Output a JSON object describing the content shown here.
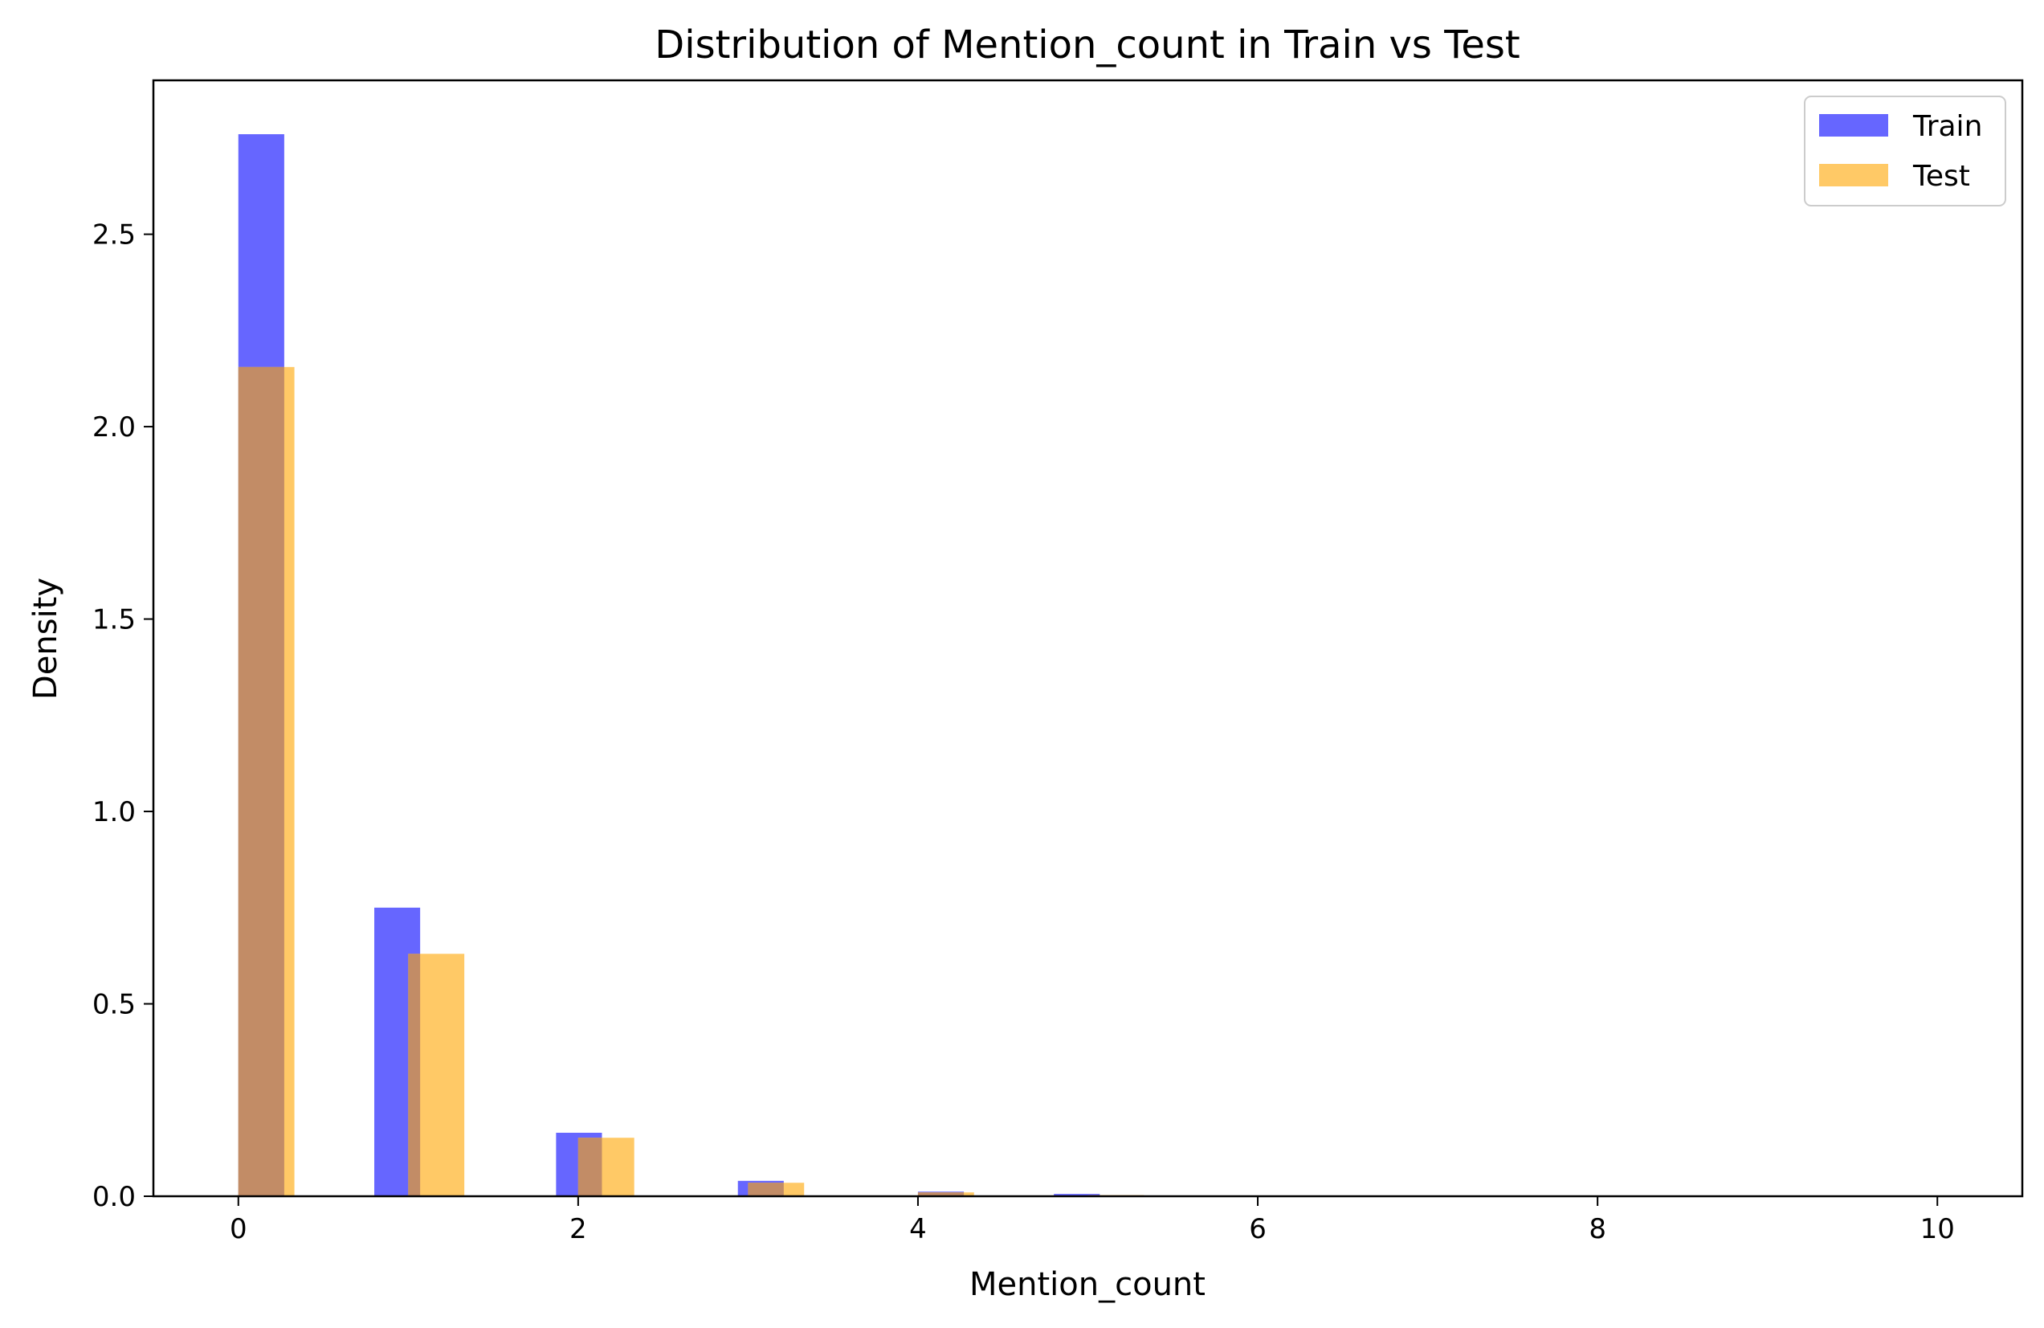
{
  "chart_data": {
    "type": "bar",
    "title": "Distribution of Mention_count in Train vs Test",
    "xlabel": "Mention_count",
    "ylabel": "Density",
    "xlim": [
      -0.5,
      10.5
    ],
    "ylim": [
      0,
      2.9
    ],
    "xticks": [
      0,
      2,
      4,
      6,
      8,
      10
    ],
    "xtick_labels": [
      "0",
      "2",
      "4",
      "6",
      "8",
      "10"
    ],
    "yticks": [
      0,
      0.5,
      1.0,
      1.5,
      2.0,
      2.5
    ],
    "ytick_labels": [
      "0.0",
      "0.5",
      "1.0",
      "1.5",
      "2.0",
      "2.5"
    ],
    "grid": false,
    "legend_position": "top-right",
    "series": [
      {
        "name": "Train",
        "color": "#6666ff",
        "bins": [
          {
            "x0": 0.0,
            "x1": 0.27,
            "value": 2.76
          },
          {
            "x0": 0.8,
            "x1": 1.07,
            "value": 0.75
          },
          {
            "x0": 1.87,
            "x1": 2.14,
            "value": 0.165
          },
          {
            "x0": 2.94,
            "x1": 3.21,
            "value": 0.04
          },
          {
            "x0": 4.0,
            "x1": 4.27,
            "value": 0.012
          },
          {
            "x0": 4.8,
            "x1": 5.07,
            "value": 0.006
          }
        ]
      },
      {
        "name": "Test",
        "color": "#ffc966",
        "bins": [
          {
            "x0": 0.0,
            "x1": 0.33,
            "value": 2.155
          },
          {
            "x0": 1.0,
            "x1": 1.33,
            "value": 0.63
          },
          {
            "x0": 2.0,
            "x1": 2.33,
            "value": 0.152
          },
          {
            "x0": 3.0,
            "x1": 3.33,
            "value": 0.035
          },
          {
            "x0": 4.0,
            "x1": 4.33,
            "value": 0.01
          },
          {
            "x0": 5.0,
            "x1": 5.33,
            "value": 0.003
          }
        ]
      }
    ],
    "overlap_color": "#c28c66"
  }
}
